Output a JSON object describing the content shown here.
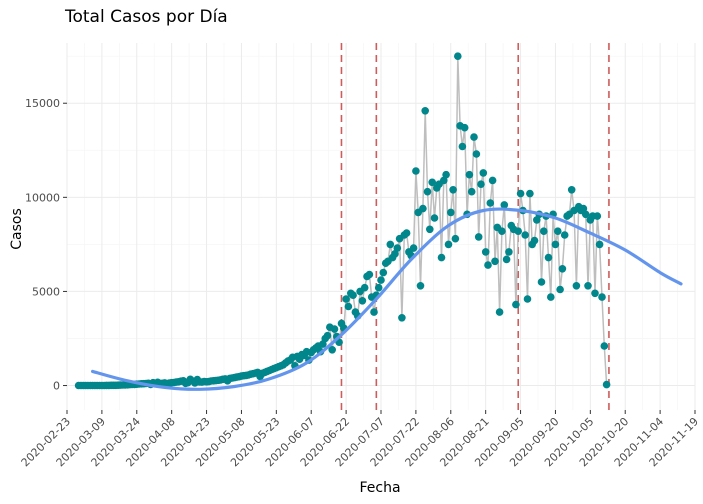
{
  "chart_data": {
    "type": "scatter",
    "title": "Total Casos por Día",
    "xlabel": "Fecha",
    "ylabel": "Casos",
    "x_axis": {
      "type": "date",
      "range": [
        "2020-02-23",
        "2020-11-19"
      ],
      "ticks": [
        "2020-02-23",
        "2020-03-09",
        "2020-03-24",
        "2020-04-08",
        "2020-04-23",
        "2020-05-08",
        "2020-05-23",
        "2020-06-07",
        "2020-06-22",
        "2020-07-07",
        "2020-07-22",
        "2020-08-06",
        "2020-08-21",
        "2020-09-05",
        "2020-09-20",
        "2020-10-05",
        "2020-10-20",
        "2020-11-04",
        "2020-11-19"
      ]
    },
    "y_axis": {
      "range": [
        -1300,
        18200
      ],
      "ticks": [
        0,
        5000,
        10000,
        15000
      ]
    },
    "grid": true,
    "colors": {
      "points": "#00868b",
      "connecting_line": "#bebebe",
      "smooth_line": "#6495ed",
      "vlines": "#cd5c5c"
    },
    "vertical_lines": [
      "2020-06-20",
      "2020-07-05",
      "2020-09-04",
      "2020-10-13"
    ],
    "series": [
      {
        "kind": "points",
        "x_start": "2020-02-28",
        "values": [
          0,
          0,
          0,
          0,
          0,
          0,
          0,
          0,
          0,
          0,
          0,
          0,
          5,
          5,
          10,
          10,
          15,
          20,
          25,
          30,
          35,
          40,
          50,
          55,
          60,
          70,
          80,
          90,
          100,
          110,
          120,
          60,
          150,
          100,
          170,
          110,
          120,
          140,
          100,
          130,
          150,
          160,
          180,
          200,
          230,
          250,
          120,
          150,
          330,
          240,
          140,
          320,
          190,
          180,
          210,
          200,
          210,
          240,
          250,
          260,
          280,
          300,
          330,
          350,
          250,
          380,
          400,
          420,
          450,
          470,
          500,
          520,
          540,
          560,
          600,
          630,
          660,
          700,
          480,
          650,
          700,
          750,
          800,
          850,
          900,
          950,
          1000,
          1050,
          1100,
          1200,
          1300,
          1350,
          1500,
          1050,
          1550,
          1400,
          1650,
          1600,
          1800,
          1350,
          1750,
          1900,
          2000,
          2100,
          1800,
          2200,
          2500,
          2650,
          3100,
          1900,
          3000,
          2600,
          2300,
          3300,
          3050,
          4600,
          4200,
          4900,
          4800,
          3900,
          3700,
          5000,
          4500,
          5200,
          5800,
          5900,
          4700,
          3900,
          4800,
          5200,
          5600,
          6000,
          6500,
          6600,
          7500,
          6800,
          7000,
          7300,
          7800,
          3600,
          8000,
          8100,
          7100,
          6900,
          7300,
          11400,
          9200,
          5300,
          9400,
          14600,
          10300,
          8300,
          10800,
          8900,
          10500,
          10700,
          6800,
          10900,
          11200,
          7500,
          9200,
          10400,
          7800,
          17500,
          13800,
          12700,
          13700,
          9100,
          11200,
          10300,
          13200,
          12300,
          7900,
          10700,
          11300,
          7100,
          6400,
          9700,
          10900,
          6600,
          8400,
          3900,
          8200,
          9600,
          6700,
          7100,
          8500,
          8300,
          4300,
          8200,
          10200,
          9300,
          8000,
          4600,
          10200,
          7500,
          7700,
          8800,
          9100,
          5500,
          8200,
          9000,
          6800,
          4700,
          9100,
          7500,
          8200,
          5100,
          6200,
          8000,
          9000,
          9100,
          10400,
          9300,
          5300,
          9500,
          9300,
          9400,
          9100,
          5300,
          8800,
          9000,
          4900,
          9000,
          7500,
          4700,
          2100,
          50
        ]
      },
      {
        "kind": "smooth",
        "x": [
          "2020-03-05",
          "2020-03-20",
          "2020-04-05",
          "2020-04-20",
          "2020-05-05",
          "2020-05-20",
          "2020-06-05",
          "2020-06-20",
          "2020-07-05",
          "2020-07-20",
          "2020-08-05",
          "2020-08-20",
          "2020-09-05",
          "2020-09-20",
          "2020-10-05",
          "2020-10-20",
          "2020-11-04",
          "2020-11-13"
        ],
        "values": [
          750,
          250,
          -100,
          -200,
          -50,
          350,
          1200,
          2700,
          4600,
          6700,
          8500,
          9300,
          9300,
          8900,
          8100,
          7200,
          6000,
          5400
        ]
      }
    ]
  }
}
